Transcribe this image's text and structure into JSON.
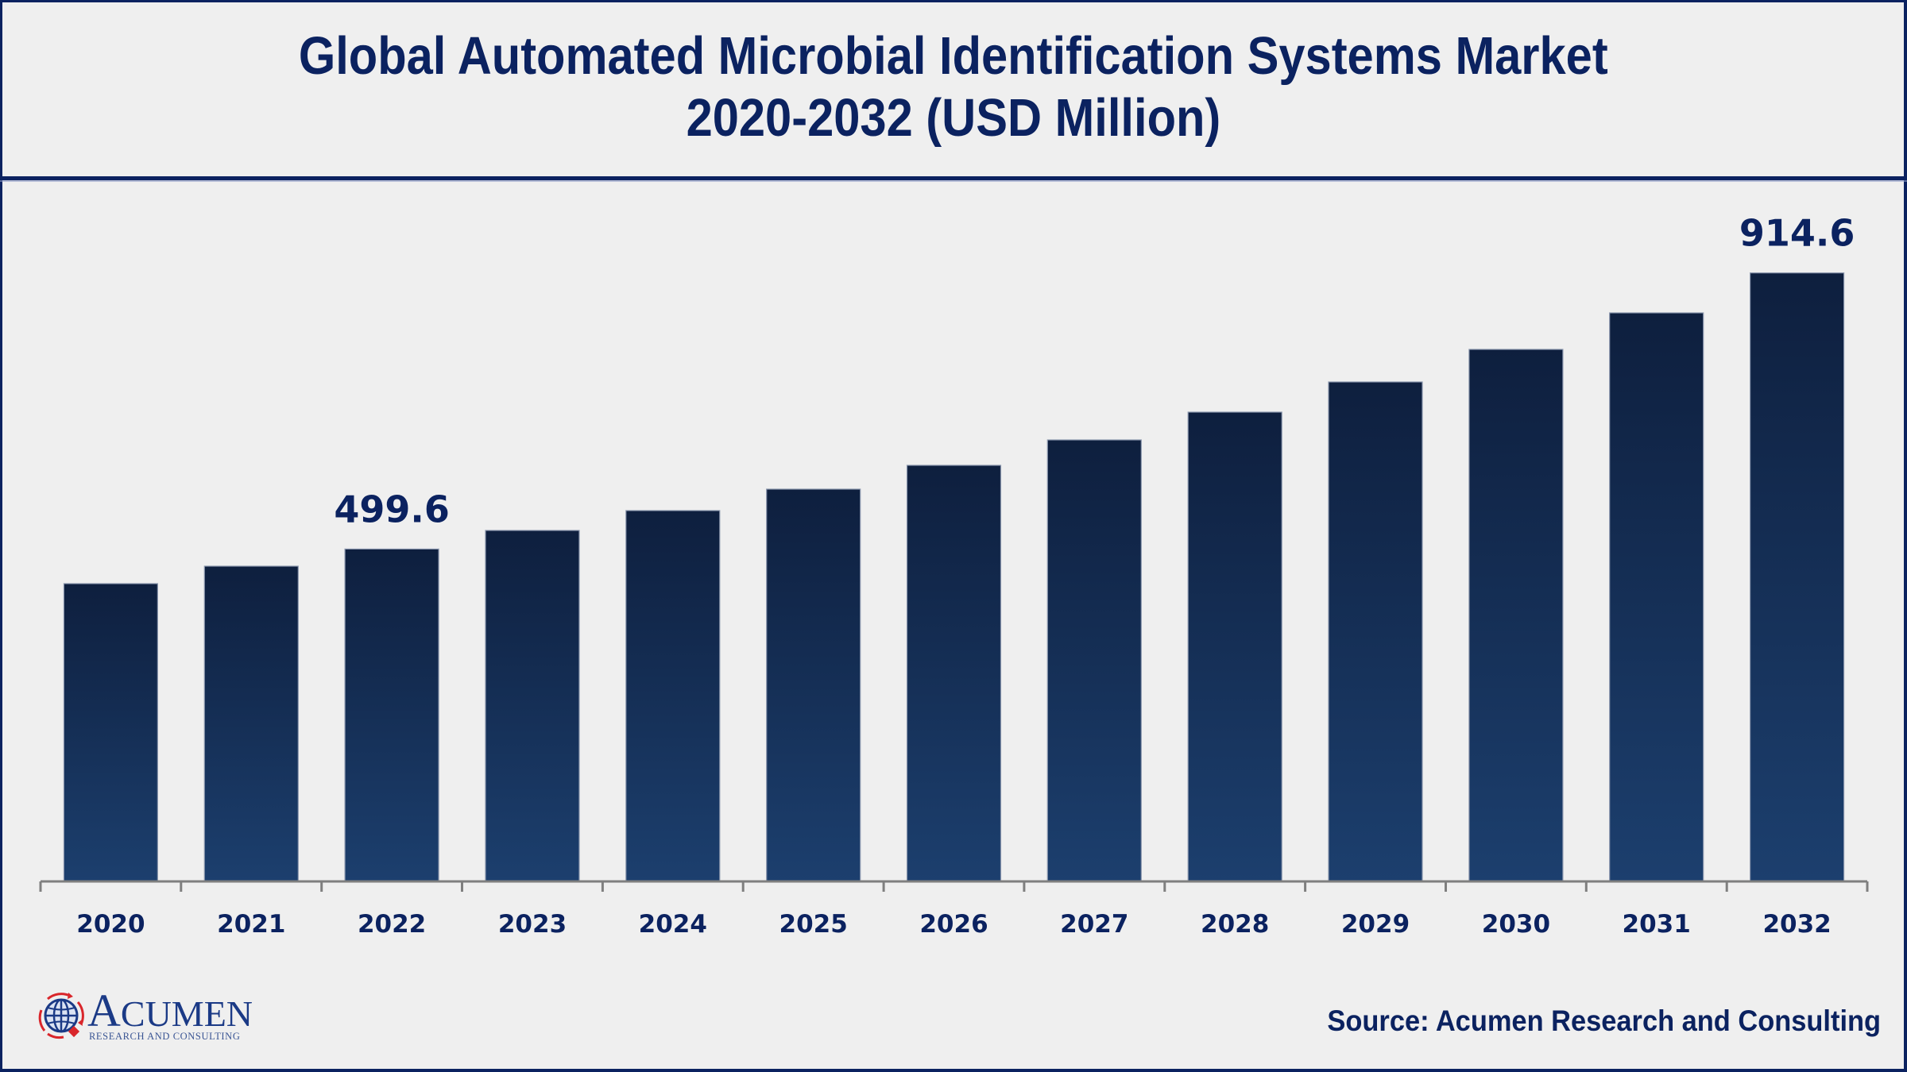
{
  "header": {
    "title_line1": "Global Automated Microbial Identification Systems Market",
    "title_line2": "2020-2032 (USD Million)"
  },
  "footer": {
    "source": "Source: Acumen Research and Consulting",
    "logo_name_initial": "A",
    "logo_name_rest": "CUMEN",
    "logo_tagline": "RESEARCH AND CONSULTING",
    "logo_icon": "globe-icon"
  },
  "colors": {
    "navy": "#0b2260",
    "bar_top": "#0e1f3e",
    "bar_bottom": "#1c3f6e",
    "axis": "#7f7f7f",
    "background": "#efefef",
    "logo_red": "#d9262b",
    "logo_blue": "#1b3a86"
  },
  "chart_data": {
    "type": "bar",
    "title": "Global Automated Microbial Identification Systems Market 2020-2032 (USD Million)",
    "xlabel": "",
    "ylabel": "USD Million",
    "categories": [
      "2020",
      "2021",
      "2022",
      "2023",
      "2024",
      "2025",
      "2026",
      "2027",
      "2028",
      "2029",
      "2030",
      "2031",
      "2032"
    ],
    "values": [
      447.6,
      473.9,
      499.6,
      527.6,
      557.4,
      589.6,
      625.4,
      663.6,
      705.4,
      750.8,
      799.7,
      854.6,
      914.6
    ],
    "data_labels": [
      {
        "category": "2022",
        "text": "499.6"
      },
      {
        "category": "2032",
        "text": "914.6"
      }
    ],
    "ylim": [
      0,
      1000
    ],
    "grid": false,
    "y_axis_visible": false,
    "legend": "none"
  }
}
